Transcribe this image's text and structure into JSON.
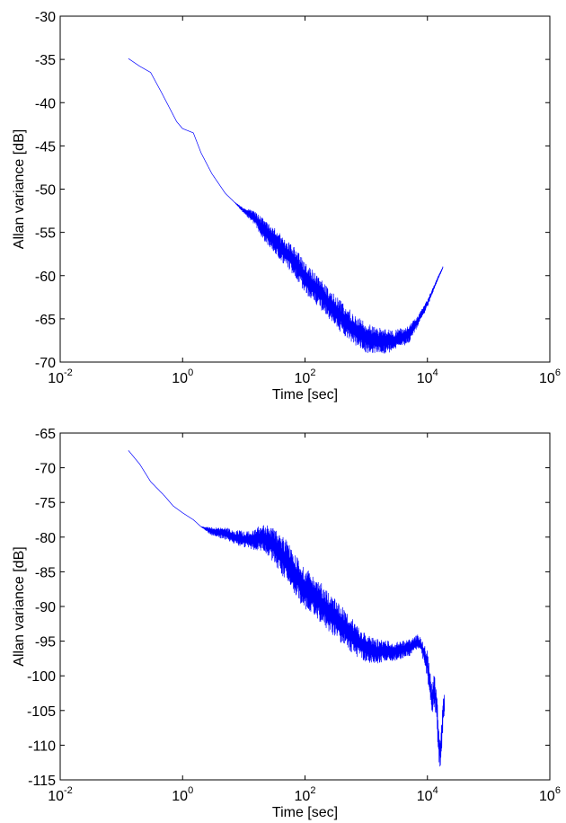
{
  "chart_data": [
    {
      "type": "line",
      "title": "",
      "xlabel": "Time [sec]",
      "ylabel": "Allan variance [dB]",
      "xscale": "log",
      "xlim": [
        0.01,
        1000000
      ],
      "ylim": [
        -70,
        -30
      ],
      "x_ticks": [
        {
          "base": "10",
          "exp": "-2"
        },
        {
          "base": "10",
          "exp": "0"
        },
        {
          "base": "10",
          "exp": "2"
        },
        {
          "base": "10",
          "exp": "4"
        },
        {
          "base": "10",
          "exp": "6"
        }
      ],
      "y_ticks": [
        "-30",
        "-35",
        "-40",
        "-45",
        "-50",
        "-55",
        "-60",
        "-65",
        "-70"
      ],
      "grid": false,
      "line_color": "#0000ff",
      "series": [
        {
          "x": [
            0.13,
            0.2,
            0.3,
            0.45,
            0.6,
            0.8,
            1.0,
            1.5,
            2.0,
            3.0,
            5.0,
            7.0,
            10,
            15,
            20,
            30,
            50,
            70,
            100,
            150,
            200,
            300,
            500,
            700,
            1000,
            1500,
            2000,
            3000,
            5000,
            7000,
            10000,
            14000,
            18000
          ],
          "y": [
            -34.9,
            -35.8,
            -36.5,
            -38.8,
            -40.5,
            -42.2,
            -43.0,
            -43.5,
            -45.8,
            -48.2,
            -50.5,
            -51.5,
            -52.5,
            -53.3,
            -54.5,
            -55.8,
            -57.5,
            -58.5,
            -60.2,
            -61.5,
            -62.5,
            -64.0,
            -65.5,
            -66.5,
            -67.2,
            -67.5,
            -67.6,
            -67.5,
            -66.8,
            -65.2,
            -63.2,
            -60.7,
            -59.0
          ],
          "noise": [
            0,
            0,
            0,
            0,
            0,
            0,
            0,
            0,
            0,
            0,
            0,
            0,
            0.3,
            0.8,
            1.2,
            1.5,
            1.6,
            1.7,
            1.8,
            1.8,
            1.8,
            1.8,
            1.8,
            1.8,
            1.7,
            1.6,
            1.4,
            1.2,
            1.0,
            0.6,
            0.4,
            0.2,
            0.1
          ]
        }
      ]
    },
    {
      "type": "line",
      "title": "",
      "xlabel": "Time [sec]",
      "ylabel": "Allan variance [dB]",
      "xscale": "log",
      "xlim": [
        0.01,
        1000000
      ],
      "ylim": [
        -115,
        -65
      ],
      "x_ticks": [
        {
          "base": "10",
          "exp": "-2"
        },
        {
          "base": "10",
          "exp": "0"
        },
        {
          "base": "10",
          "exp": "2"
        },
        {
          "base": "10",
          "exp": "4"
        },
        {
          "base": "10",
          "exp": "6"
        }
      ],
      "y_ticks": [
        "-65",
        "-70",
        "-75",
        "-80",
        "-85",
        "-90",
        "-95",
        "-100",
        "-105",
        "-110",
        "-115"
      ],
      "grid": false,
      "line_color": "#0000ff",
      "series": [
        {
          "x": [
            0.13,
            0.2,
            0.3,
            0.5,
            0.7,
            1.0,
            1.5,
            2.0,
            3.0,
            5.0,
            7.0,
            10,
            15,
            20,
            30,
            50,
            70,
            100,
            150,
            200,
            300,
            500,
            700,
            1000,
            1500,
            2000,
            3000,
            5000,
            7000,
            8000,
            9000,
            10000,
            11000,
            12000,
            13000,
            14000,
            15000,
            16000,
            17000,
            18000,
            19000
          ],
          "y": [
            -67.5,
            -69.5,
            -72.0,
            -74.0,
            -75.5,
            -76.5,
            -77.5,
            -78.5,
            -79.2,
            -79.5,
            -80.0,
            -80.3,
            -80.5,
            -80.0,
            -81.0,
            -83.5,
            -85.5,
            -87.5,
            -88.5,
            -90.0,
            -91.5,
            -93.5,
            -95.0,
            -96.0,
            -96.5,
            -96.3,
            -96.5,
            -96.0,
            -95.0,
            -95.8,
            -97.0,
            -98.5,
            -101.0,
            -103.5,
            -102.0,
            -104.0,
            -108.5,
            -111.0,
            -109.5,
            -105.0,
            -104.0
          ],
          "noise": [
            0,
            0,
            0,
            0,
            0,
            0,
            0,
            0,
            0.6,
            0.9,
            1.0,
            1.2,
            1.5,
            2.0,
            2.6,
            3.0,
            3.0,
            3.0,
            3.0,
            3.0,
            2.8,
            2.6,
            2.4,
            2.0,
            1.8,
            1.5,
            1.3,
            1.2,
            1.0,
            1.0,
            1.5,
            2.0,
            2.0,
            2.5,
            2.5,
            2.5,
            3.0,
            3.0,
            3.0,
            2.0,
            1.5
          ]
        }
      ]
    }
  ]
}
